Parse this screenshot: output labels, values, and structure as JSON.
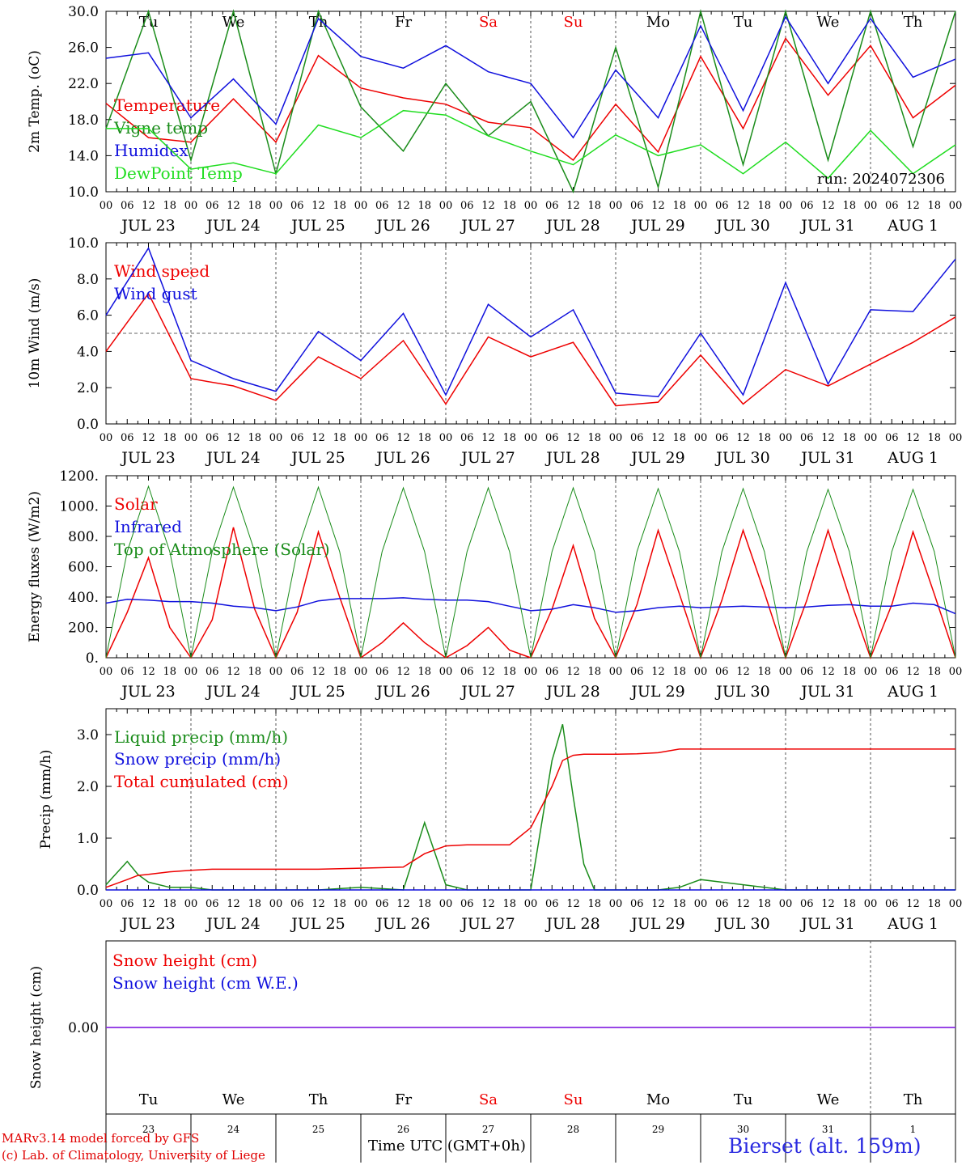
{
  "colors": {
    "red": "#ee0000",
    "green": "#1a8c1a",
    "blue": "#1010dd",
    "light_green": "#20dd20",
    "purple": "#8a2be2",
    "axis": "#000000"
  },
  "days": [
    "Tu",
    "We",
    "Th",
    "Fr",
    "Sa",
    "Su",
    "Mo",
    "Tu",
    "We",
    "Th"
  ],
  "day_colors": [
    "#000",
    "#000",
    "#000",
    "#000",
    "#ee0000",
    "#ee0000",
    "#000",
    "#000",
    "#000",
    "#000"
  ],
  "date_labels": [
    "JUL 23",
    "JUL 24",
    "JUL 25",
    "JUL 26",
    "JUL 27",
    "JUL 28",
    "JUL 29",
    "JUL 30",
    "JUL 31",
    "AUG  1"
  ],
  "day_numbers": [
    "23",
    "24",
    "25",
    "26",
    "27",
    "28",
    "29",
    "30",
    "31",
    "1"
  ],
  "hour_labels": [
    "00",
    "06",
    "12",
    "18"
  ],
  "footer": {
    "model": "MARv3.14 model forced by GFS",
    "lab": "(c) Lab. of Climatology, University of Liege",
    "time_axis": "Time UTC (GMT+0h)",
    "station": "Bierset (alt. 159m)"
  },
  "chart_data": [
    {
      "type": "line",
      "ylabel": "2m Temp. (oC)",
      "ylim": [
        10,
        30
      ],
      "yticks": [
        "10.0",
        "14.0",
        "18.0",
        "22.0",
        "26.0",
        "30.0"
      ],
      "yticks_values": [
        10,
        14,
        18,
        22,
        26,
        30
      ],
      "run_label": "run: 2024072306",
      "grid": "vertical dashed day lines",
      "legend": "top-left",
      "x_hours": [
        0,
        12,
        24,
        36,
        48,
        60,
        72,
        84,
        96,
        108,
        120,
        132,
        144,
        156,
        168,
        180,
        192,
        204,
        216,
        228,
        240
      ],
      "series": [
        {
          "name": "Temperature",
          "color": "red",
          "values": [
            19.8,
            16,
            15.5,
            20.3,
            15.5,
            25.1,
            21.5,
            20.4,
            19.7,
            17.7,
            17.1,
            13.5,
            19.7,
            14.4,
            25,
            17,
            27,
            20.7,
            26.2,
            18.2,
            21.8
          ]
        },
        {
          "name": "Vigne temp",
          "color": "green",
          "values": [
            17,
            30,
            13.5,
            30,
            12,
            30,
            19.4,
            14.5,
            22,
            16.2,
            20,
            10,
            26,
            10.5,
            30,
            13,
            30,
            13.5,
            30,
            15,
            30
          ]
        },
        {
          "name": "Humidex",
          "color": "blue",
          "values": [
            24.8,
            25.4,
            18.2,
            22.5,
            17.5,
            29.2,
            25,
            23.7,
            26.2,
            23.3,
            22,
            16,
            23.5,
            18.2,
            28.4,
            19,
            29.4,
            22,
            29.2,
            22.7,
            24.7
          ]
        },
        {
          "name": "DewPoint Temp",
          "color": "light_green",
          "values": [
            17,
            17,
            12.5,
            13.2,
            12,
            17.4,
            16,
            19,
            18.5,
            16.2,
            14.5,
            13,
            16.3,
            14,
            15.2,
            12,
            15.5,
            11.5,
            16.8,
            12,
            15.2
          ]
        }
      ]
    },
    {
      "type": "line",
      "ylabel": "10m Wind (m/s)",
      "ylim": [
        0,
        10
      ],
      "yticks": [
        "0.0",
        "2.0",
        "4.0",
        "6.0",
        "8.0",
        "10.0"
      ],
      "yticks_values": [
        0,
        2,
        4,
        6,
        8,
        10
      ],
      "reference_line": 5,
      "legend": "top-left",
      "x_hours": [
        0,
        12,
        24,
        36,
        48,
        60,
        72,
        84,
        96,
        108,
        120,
        132,
        144,
        156,
        168,
        180,
        192,
        204,
        216,
        228,
        240
      ],
      "series": [
        {
          "name": "Wind speed",
          "color": "red",
          "values": [
            4,
            7.2,
            2.5,
            2.1,
            1.3,
            3.7,
            2.5,
            4.6,
            1.1,
            4.8,
            3.7,
            4.5,
            1,
            1.2,
            3.8,
            1.1,
            3,
            2.1,
            3.3,
            4.5,
            5.9
          ]
        },
        {
          "name": "Wind gust",
          "color": "blue",
          "values": [
            6,
            9.7,
            3.5,
            2.5,
            1.8,
            5.1,
            3.5,
            6.1,
            1.6,
            6.6,
            4.8,
            6.3,
            1.7,
            1.5,
            5,
            1.6,
            7.8,
            2.2,
            6.3,
            6.2,
            9.1
          ]
        }
      ]
    },
    {
      "type": "line",
      "ylabel": "Energy fluxes (W/m2)",
      "ylim": [
        0,
        1200
      ],
      "yticks": [
        "0.",
        "200.",
        "400.",
        "600.",
        "800.",
        "1000.",
        "1200."
      ],
      "yticks_values": [
        0,
        200,
        400,
        600,
        800,
        1000,
        1200
      ],
      "legend": "top-left",
      "x_hours": [
        0,
        6,
        12,
        18,
        24,
        30,
        36,
        42,
        48,
        54,
        60,
        66,
        72,
        78,
        84,
        90,
        96,
        102,
        108,
        114,
        120,
        126,
        132,
        138,
        144,
        150,
        156,
        162,
        168,
        174,
        180,
        186,
        192,
        198,
        204,
        210,
        216,
        222,
        228,
        234,
        240
      ],
      "series": [
        {
          "name": "Solar",
          "color": "red",
          "values": [
            0,
            300,
            660,
            200,
            0,
            250,
            860,
            320,
            0,
            300,
            830,
            400,
            0,
            100,
            230,
            100,
            0,
            80,
            200,
            50,
            0,
            320,
            740,
            260,
            0,
            350,
            840,
            420,
            0,
            380,
            840,
            430,
            0,
            380,
            840,
            400,
            0,
            350,
            830,
            420,
            0
          ]
        },
        {
          "name": "Infrared",
          "color": "blue",
          "values": [
            360,
            385,
            380,
            370,
            370,
            360,
            340,
            330,
            310,
            335,
            375,
            390,
            390,
            390,
            395,
            385,
            380,
            380,
            370,
            340,
            310,
            320,
            350,
            330,
            300,
            310,
            330,
            340,
            330,
            335,
            340,
            335,
            330,
            335,
            345,
            350,
            340,
            340,
            360,
            350,
            290
          ]
        },
        {
          "name": "Top of Atmosphere (Solar)",
          "color": "green",
          "values": [
            0,
            700,
            1130,
            700,
            0,
            700,
            1125,
            700,
            0,
            700,
            1125,
            700,
            0,
            700,
            1120,
            700,
            0,
            700,
            1120,
            700,
            0,
            700,
            1120,
            700,
            0,
            700,
            1115,
            700,
            0,
            700,
            1115,
            700,
            0,
            700,
            1110,
            700,
            0,
            700,
            1110,
            700,
            0
          ]
        }
      ]
    },
    {
      "type": "line",
      "ylabel": "Precip (mm/h)",
      "ylim": [
        0,
        3.5
      ],
      "yticks": [
        "0.0",
        "1.0",
        "2.0",
        "3.0"
      ],
      "yticks_values": [
        0,
        1,
        2,
        3
      ],
      "legend": "top-left",
      "x_hours": [
        0,
        6,
        9,
        12,
        18,
        24,
        30,
        42,
        60,
        72,
        84,
        90,
        96,
        102,
        108,
        114,
        120,
        126,
        129,
        132,
        135,
        138,
        144,
        150,
        156,
        162,
        168,
        192,
        240
      ],
      "series": [
        {
          "name": "Liquid precip (mm/h)",
          "color": "green",
          "values": [
            0.1,
            0.55,
            0.3,
            0.15,
            0.05,
            0.05,
            0,
            0,
            0,
            0.05,
            0,
            1.3,
            0.1,
            0,
            0,
            0,
            0,
            2.5,
            3.2,
            1.8,
            0.5,
            0,
            0,
            0,
            0,
            0.05,
            0.2,
            0,
            0
          ]
        },
        {
          "name": "Snow precip (mm/h)",
          "color": "blue",
          "values": [
            0,
            0,
            0,
            0,
            0,
            0,
            0,
            0,
            0,
            0,
            0,
            0,
            0,
            0,
            0,
            0,
            0,
            0,
            0,
            0,
            0,
            0,
            0,
            0,
            0,
            0,
            0,
            0,
            0
          ]
        },
        {
          "name": "Total cumulated (cm)",
          "color": "red",
          "values": [
            0.05,
            0.2,
            0.28,
            0.3,
            0.35,
            0.38,
            0.4,
            0.4,
            0.4,
            0.42,
            0.44,
            0.7,
            0.85,
            0.87,
            0.87,
            0.87,
            1.2,
            2.0,
            2.5,
            2.6,
            2.62,
            2.62,
            2.62,
            2.63,
            2.65,
            2.72,
            2.72,
            2.72,
            2.72
          ]
        }
      ]
    },
    {
      "type": "line",
      "ylabel": "Snow height (cm)",
      "ylim": [
        -1,
        1
      ],
      "yticks": [
        "0.00"
      ],
      "yticks_values": [
        0
      ],
      "legend": "top-left",
      "x_hours": [
        0,
        240
      ],
      "series": [
        {
          "name": "Snow height (cm)",
          "color": "red",
          "values": [
            0,
            0
          ]
        },
        {
          "name": "Snow height (cm W.E.)",
          "color": "blue",
          "values": [
            0,
            0
          ]
        }
      ]
    }
  ]
}
